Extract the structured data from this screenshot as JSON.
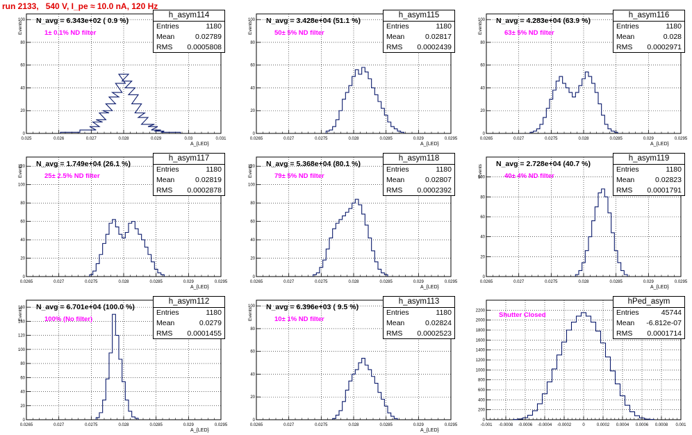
{
  "header": {
    "title": "run 2133,   540 V, I_pe ≈ 10.0 nA, 120 Hz"
  },
  "chart_data": [
    {
      "type": "bar",
      "name": "h_asym114",
      "stats": {
        "entries_label": "Entries",
        "entries": "1180",
        "mean_label": "Mean",
        "mean": "0.02789",
        "rms_label": "RMS",
        "rms": "0.0005808"
      },
      "annotation": "N_avg = 6.343e+02 ( 0.9 %)",
      "filter": "1± 0.1% ND filter",
      "xlabel": "A_{LED}",
      "ylabel": "Events",
      "xlim": [
        0.025,
        0.031
      ],
      "ylim": [
        0,
        105
      ],
      "xticks": [
        "0.025",
        "0.026",
        "0.027",
        "0.028",
        "0.029",
        "0.03",
        "0.031"
      ],
      "yticks": [
        0,
        20,
        40,
        60,
        80,
        100
      ],
      "bins": [
        [
          0.0262,
          1
        ],
        [
          0.0265,
          1
        ],
        [
          0.0268,
          3
        ],
        [
          0.027,
          3
        ],
        [
          0.0271,
          6
        ],
        [
          0.0272,
          10
        ],
        [
          0.0273,
          12
        ],
        [
          0.0274,
          18
        ],
        [
          0.0275,
          20
        ],
        [
          0.0276,
          26
        ],
        [
          0.0277,
          32
        ],
        [
          0.0278,
          36
        ],
        [
          0.0279,
          44
        ],
        [
          0.028,
          52
        ],
        [
          0.0281,
          46
        ],
        [
          0.0282,
          40
        ],
        [
          0.0283,
          34
        ],
        [
          0.0284,
          26
        ],
        [
          0.0285,
          18
        ],
        [
          0.0286,
          14
        ],
        [
          0.0287,
          8
        ],
        [
          0.0288,
          8
        ],
        [
          0.0289,
          6
        ],
        [
          0.029,
          3
        ],
        [
          0.0291,
          2
        ],
        [
          0.0293,
          1
        ],
        [
          0.0296,
          1
        ]
      ]
    },
    {
      "type": "bar",
      "name": "h_asym115",
      "stats": {
        "entries_label": "Entries",
        "entries": "1180",
        "mean_label": "Mean",
        "mean": "0.02817",
        "rms_label": "RMS",
        "rms": "0.0002439"
      },
      "annotation": "N_avg = 3.428e+04 (51.1 %)",
      "filter": "50± 5% ND filter",
      "xlabel": "A_{LED}",
      "ylabel": "Events",
      "xlim": [
        0.0265,
        0.0295
      ],
      "ylim": [
        0,
        105
      ],
      "xticks": [
        "0.0265",
        "0.027",
        "0.0275",
        "0.028",
        "0.0285",
        "0.029",
        "0.0295"
      ],
      "yticks": [
        0,
        20,
        40,
        60,
        80,
        100
      ],
      "bins": [
        [
          0.0276,
          2
        ],
        [
          0.02765,
          3
        ],
        [
          0.0277,
          6
        ],
        [
          0.02775,
          12
        ],
        [
          0.0278,
          20
        ],
        [
          0.02785,
          30
        ],
        [
          0.0279,
          36
        ],
        [
          0.02795,
          42
        ],
        [
          0.028,
          50
        ],
        [
          0.02805,
          56
        ],
        [
          0.0281,
          52
        ],
        [
          0.02815,
          58
        ],
        [
          0.0282,
          54
        ],
        [
          0.02825,
          48
        ],
        [
          0.0283,
          40
        ],
        [
          0.02835,
          34
        ],
        [
          0.0284,
          28
        ],
        [
          0.02845,
          22
        ],
        [
          0.0285,
          16
        ],
        [
          0.02855,
          10
        ],
        [
          0.0286,
          6
        ],
        [
          0.02865,
          4
        ],
        [
          0.0287,
          2
        ],
        [
          0.02875,
          1
        ]
      ]
    },
    {
      "type": "bar",
      "name": "h_asym116",
      "stats": {
        "entries_label": "Entries",
        "entries": "1180",
        "mean_label": "Mean",
        "mean": "0.028",
        "rms_label": "RMS",
        "rms": "0.0002971"
      },
      "annotation": "N_avg = 4.283e+04 (63.9 %)",
      "filter": "63± 5% ND filter",
      "xlabel": "A_{LED}",
      "ylabel": "Events",
      "xlim": [
        0.0265,
        0.0295
      ],
      "ylim": [
        0,
        105
      ],
      "xticks": [
        "0.0265",
        "0.027",
        "0.0275",
        "0.028",
        "0.0285",
        "0.029",
        "0.0295"
      ],
      "yticks": [
        0,
        20,
        40,
        60,
        80,
        100
      ],
      "bins": [
        [
          0.0272,
          1
        ],
        [
          0.02725,
          2
        ],
        [
          0.0273,
          4
        ],
        [
          0.02735,
          8
        ],
        [
          0.0274,
          14
        ],
        [
          0.02745,
          22
        ],
        [
          0.0275,
          30
        ],
        [
          0.02755,
          38
        ],
        [
          0.0276,
          46
        ],
        [
          0.02765,
          50
        ],
        [
          0.0277,
          44
        ],
        [
          0.02775,
          40
        ],
        [
          0.0278,
          36
        ],
        [
          0.02785,
          32
        ],
        [
          0.0279,
          36
        ],
        [
          0.02795,
          42
        ],
        [
          0.028,
          48
        ],
        [
          0.02805,
          54
        ],
        [
          0.0281,
          50
        ],
        [
          0.02815,
          44
        ],
        [
          0.0282,
          36
        ],
        [
          0.02825,
          26
        ],
        [
          0.0283,
          16
        ],
        [
          0.02835,
          8
        ],
        [
          0.0284,
          4
        ],
        [
          0.02845,
          2
        ],
        [
          0.0285,
          1
        ]
      ]
    },
    {
      "type": "bar",
      "name": "h_asym117",
      "stats": {
        "entries_label": "Entries",
        "entries": "1180",
        "mean_label": "Mean",
        "mean": "0.02819",
        "rms_label": "RMS",
        "rms": "0.0002878"
      },
      "annotation": "N_avg = 1.749e+04 (26.1 %)",
      "filter": "25± 2.5% ND filter",
      "xlabel": "A_{LED}",
      "ylabel": "Events",
      "xlim": [
        0.0265,
        0.0295
      ],
      "ylim": [
        0,
        130
      ],
      "xticks": [
        "0.0265",
        "0.027",
        "0.0275",
        "0.028",
        "0.0285",
        "0.029",
        "0.0295"
      ],
      "yticks": [
        0,
        20,
        40,
        60,
        80,
        100,
        120
      ],
      "bins": [
        [
          0.0275,
          2
        ],
        [
          0.02755,
          6
        ],
        [
          0.0276,
          14
        ],
        [
          0.02765,
          24
        ],
        [
          0.0277,
          36
        ],
        [
          0.02775,
          46
        ],
        [
          0.0278,
          58
        ],
        [
          0.02785,
          62
        ],
        [
          0.0279,
          54
        ],
        [
          0.02795,
          46
        ],
        [
          0.028,
          42
        ],
        [
          0.02805,
          48
        ],
        [
          0.0281,
          58
        ],
        [
          0.02815,
          60
        ],
        [
          0.0282,
          52
        ],
        [
          0.02825,
          46
        ],
        [
          0.0283,
          40
        ],
        [
          0.02835,
          32
        ],
        [
          0.0284,
          24
        ],
        [
          0.02845,
          16
        ],
        [
          0.0285,
          8
        ],
        [
          0.02855,
          4
        ],
        [
          0.0286,
          2
        ]
      ]
    },
    {
      "type": "bar",
      "name": "h_asym118",
      "stats": {
        "entries_label": "Entries",
        "entries": "1180",
        "mean_label": "Mean",
        "mean": "0.02807",
        "rms_label": "RMS",
        "rms": "0.0002392"
      },
      "annotation": "N_avg = 5.368e+04 (80.1 %)",
      "filter": "79± 5% ND filter",
      "xlabel": "A_{LED}",
      "ylabel": "Events",
      "xlim": [
        0.0265,
        0.0295
      ],
      "ylim": [
        0,
        130
      ],
      "xticks": [
        "0.0265",
        "0.027",
        "0.0275",
        "0.028",
        "0.0285",
        "0.029",
        "0.0295"
      ],
      "yticks": [
        0,
        20,
        40,
        60,
        80,
        100,
        120
      ],
      "bins": [
        [
          0.0274,
          2
        ],
        [
          0.02745,
          4
        ],
        [
          0.0275,
          10
        ],
        [
          0.02755,
          18
        ],
        [
          0.0276,
          30
        ],
        [
          0.02765,
          42
        ],
        [
          0.0277,
          52
        ],
        [
          0.02775,
          58
        ],
        [
          0.0278,
          62
        ],
        [
          0.02785,
          66
        ],
        [
          0.0279,
          70
        ],
        [
          0.02795,
          74
        ],
        [
          0.028,
          80
        ],
        [
          0.02805,
          84
        ],
        [
          0.0281,
          78
        ],
        [
          0.02815,
          68
        ],
        [
          0.0282,
          56
        ],
        [
          0.02825,
          42
        ],
        [
          0.0283,
          28
        ],
        [
          0.02835,
          16
        ],
        [
          0.0284,
          8
        ],
        [
          0.02845,
          4
        ],
        [
          0.0285,
          2
        ]
      ]
    },
    {
      "type": "bar",
      "name": "h_asym119",
      "stats": {
        "entries_label": "Entries",
        "entries": "1180",
        "mean_label": "Mean",
        "mean": "0.02823",
        "rms_label": "RMS",
        "rms": "0.0001791"
      },
      "annotation": "N_avg = 2.728e+04 (40.7 %)",
      "filter": "40± 4% ND filter",
      "xlabel": "A_{LED}",
      "ylabel": "Events",
      "xlim": [
        0.0265,
        0.0295
      ],
      "ylim": [
        0,
        120
      ],
      "xticks": [
        "0.0265",
        "0.027",
        "0.0275",
        "0.028",
        "0.0285",
        "0.029",
        "0.0295"
      ],
      "yticks": [
        0,
        20,
        40,
        60,
        80,
        100
      ],
      "bins": [
        [
          0.0279,
          2
        ],
        [
          0.02795,
          6
        ],
        [
          0.028,
          14
        ],
        [
          0.02805,
          26
        ],
        [
          0.0281,
          40
        ],
        [
          0.02815,
          56
        ],
        [
          0.0282,
          70
        ],
        [
          0.02825,
          84
        ],
        [
          0.0283,
          88
        ],
        [
          0.02835,
          80
        ],
        [
          0.0284,
          64
        ],
        [
          0.02845,
          44
        ],
        [
          0.0285,
          26
        ],
        [
          0.02855,
          14
        ],
        [
          0.0286,
          6
        ],
        [
          0.02865,
          2
        ]
      ]
    },
    {
      "type": "bar",
      "name": "h_asym112",
      "stats": {
        "entries_label": "Entries",
        "entries": "1180",
        "mean_label": "Mean",
        "mean": "0.0279",
        "rms_label": "RMS",
        "rms": "0.0001455"
      },
      "annotation": "N_avg = 6.701e+04 (100.0 %)",
      "filter": "100% (No filter)",
      "xlabel": "A_{LED}",
      "ylabel": "Events",
      "xlim": [
        0.0265,
        0.0295
      ],
      "ylim": [
        0,
        170
      ],
      "xticks": [
        "0.0265",
        "0.027",
        "0.0275",
        "0.028",
        "0.0285",
        "0.029",
        "0.0295"
      ],
      "yticks": [
        0,
        20,
        40,
        60,
        80,
        100,
        120,
        140,
        160
      ],
      "bins": [
        [
          0.0276,
          3
        ],
        [
          0.02765,
          10
        ],
        [
          0.0277,
          28
        ],
        [
          0.02775,
          58
        ],
        [
          0.0278,
          95
        ],
        [
          0.02785,
          150
        ],
        [
          0.0279,
          120
        ],
        [
          0.02795,
          86
        ],
        [
          0.028,
          54
        ],
        [
          0.02805,
          28
        ],
        [
          0.0281,
          12
        ],
        [
          0.02815,
          4
        ],
        [
          0.0282,
          2
        ]
      ]
    },
    {
      "type": "bar",
      "name": "h_asym113",
      "stats": {
        "entries_label": "Entries",
        "entries": "1180",
        "mean_label": "Mean",
        "mean": "0.02824",
        "rms_label": "RMS",
        "rms": "0.0002523"
      },
      "annotation": "N_avg = 6.396e+03 ( 9.5 %)",
      "filter": "10± 1% ND filter",
      "xlabel": "A_{LED}",
      "ylabel": "Events",
      "xlim": [
        0.0265,
        0.0295
      ],
      "ylim": [
        0,
        105
      ],
      "xticks": [
        "0.0265",
        "0.027",
        "0.0275",
        "0.028",
        "0.0285",
        "0.029",
        "0.0295"
      ],
      "yticks": [
        0,
        20,
        40,
        60,
        80,
        100
      ],
      "bins": [
        [
          0.0277,
          1
        ],
        [
          0.02775,
          4
        ],
        [
          0.0278,
          8
        ],
        [
          0.02785,
          16
        ],
        [
          0.0279,
          26
        ],
        [
          0.02795,
          34
        ],
        [
          0.028,
          40
        ],
        [
          0.02805,
          44
        ],
        [
          0.0281,
          50
        ],
        [
          0.02815,
          54
        ],
        [
          0.0282,
          48
        ],
        [
          0.02825,
          44
        ],
        [
          0.0283,
          38
        ],
        [
          0.02835,
          32
        ],
        [
          0.0284,
          24
        ],
        [
          0.02845,
          18
        ],
        [
          0.0285,
          12
        ],
        [
          0.02855,
          6
        ],
        [
          0.0286,
          3
        ],
        [
          0.02865,
          1
        ]
      ]
    },
    {
      "type": "bar",
      "name": "hPed_asym",
      "stats": {
        "entries_label": "Entries",
        "entries": "45744",
        "mean_label": "Mean",
        "mean": "-6.812e-07",
        "rms_label": "RMS",
        "rms": "0.0001714"
      },
      "annotation": "",
      "filter": "Shutter Closed",
      "xlabel": "",
      "ylabel": "",
      "xlim": [
        -0.001,
        0.001
      ],
      "ylim": [
        0,
        2400
      ],
      "xticks": [
        "-0.001",
        "-0.0008",
        "-0.0006",
        "-0.0004",
        "-0.0002",
        "0",
        "0.0002",
        "0.0004",
        "0.0006",
        "0.0008",
        "0.001"
      ],
      "yticks": [
        0,
        200,
        400,
        600,
        800,
        1000,
        1200,
        1400,
        1600,
        1800,
        2000,
        2200
      ],
      "bins": [
        [
          -0.0007,
          5
        ],
        [
          -0.00065,
          15
        ],
        [
          -0.0006,
          40
        ],
        [
          -0.00055,
          90
        ],
        [
          -0.0005,
          180
        ],
        [
          -0.00045,
          320
        ],
        [
          -0.0004,
          520
        ],
        [
          -0.00035,
          760
        ],
        [
          -0.0003,
          1020
        ],
        [
          -0.00025,
          1300
        ],
        [
          -0.0002,
          1560
        ],
        [
          -0.00015,
          1800
        ],
        [
          -0.0001,
          1960
        ],
        [
          -5e-05,
          2080
        ],
        [
          0,
          2150
        ],
        [
          5e-05,
          2080
        ],
        [
          0.0001,
          1960
        ],
        [
          0.00015,
          1780
        ],
        [
          0.0002,
          1540
        ],
        [
          0.00025,
          1260
        ],
        [
          0.0003,
          980
        ],
        [
          0.00035,
          720
        ],
        [
          0.0004,
          480
        ],
        [
          0.00045,
          290
        ],
        [
          0.0005,
          160
        ],
        [
          0.00055,
          80
        ],
        [
          0.0006,
          35
        ],
        [
          0.00065,
          12
        ],
        [
          0.0007,
          4
        ]
      ]
    }
  ]
}
